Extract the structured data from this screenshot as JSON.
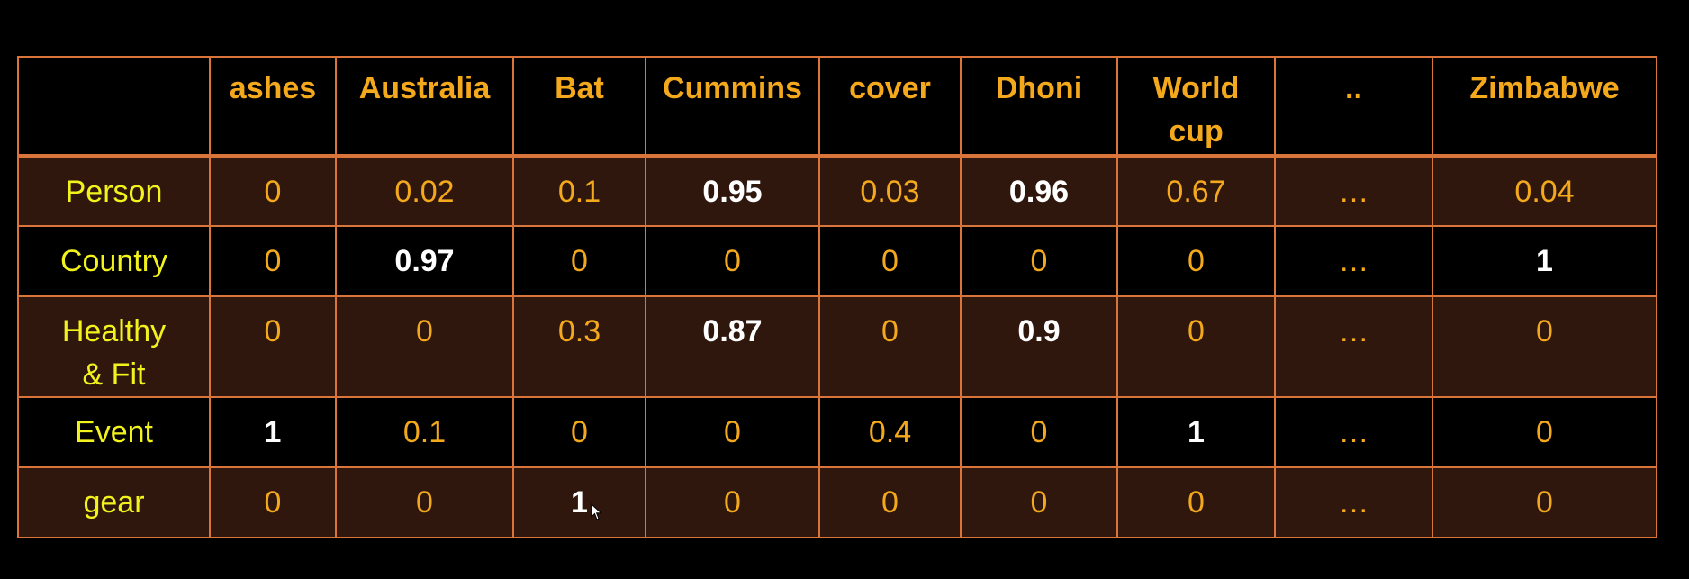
{
  "corner": "",
  "columns": [
    "ashes",
    "Australia",
    "Bat",
    "Cummins",
    "cover",
    "Dhoni",
    "World cup",
    "..",
    "Zimbabwe"
  ],
  "rows": [
    {
      "label": "Person",
      "values": [
        "0",
        "0.02",
        "0.1",
        "0.95",
        "0.03",
        "0.96",
        "0.67",
        "…",
        "0.04"
      ],
      "strong": [
        false,
        false,
        false,
        true,
        false,
        true,
        false,
        false,
        false
      ]
    },
    {
      "label": "Country",
      "values": [
        "0",
        "0.97",
        "0",
        "0",
        "0",
        "0",
        "0",
        "…",
        "1"
      ],
      "strong": [
        false,
        true,
        false,
        false,
        false,
        false,
        false,
        false,
        true
      ]
    },
    {
      "label": "Healthy & Fit",
      "values": [
        "0",
        "0",
        "0.3",
        "0.87",
        "0",
        "0.9",
        "0",
        "…",
        "0"
      ],
      "strong": [
        false,
        false,
        false,
        true,
        false,
        true,
        false,
        false,
        false
      ]
    },
    {
      "label": "Event",
      "values": [
        "1",
        "0.1",
        "0",
        "0",
        "0.4",
        "0",
        "1",
        "…",
        "0"
      ],
      "strong": [
        true,
        false,
        false,
        false,
        false,
        false,
        true,
        false,
        false
      ]
    },
    {
      "label": "gear",
      "values": [
        "0",
        "0",
        "1",
        "0",
        "0",
        "0",
        "0",
        "…",
        "0"
      ],
      "strong": [
        false,
        false,
        true,
        false,
        false,
        false,
        false,
        false,
        false
      ]
    }
  ],
  "colors": {
    "background": "#000000",
    "border": "#d9743a",
    "header_text": "#f4a81c",
    "row_label_text": "#f2f21c",
    "value_text": "#f4a81c",
    "highlight_text": "#ffffff",
    "shaded_row": "#2f170d"
  },
  "icons": {
    "cursor": "mouse-pointer-icon"
  }
}
